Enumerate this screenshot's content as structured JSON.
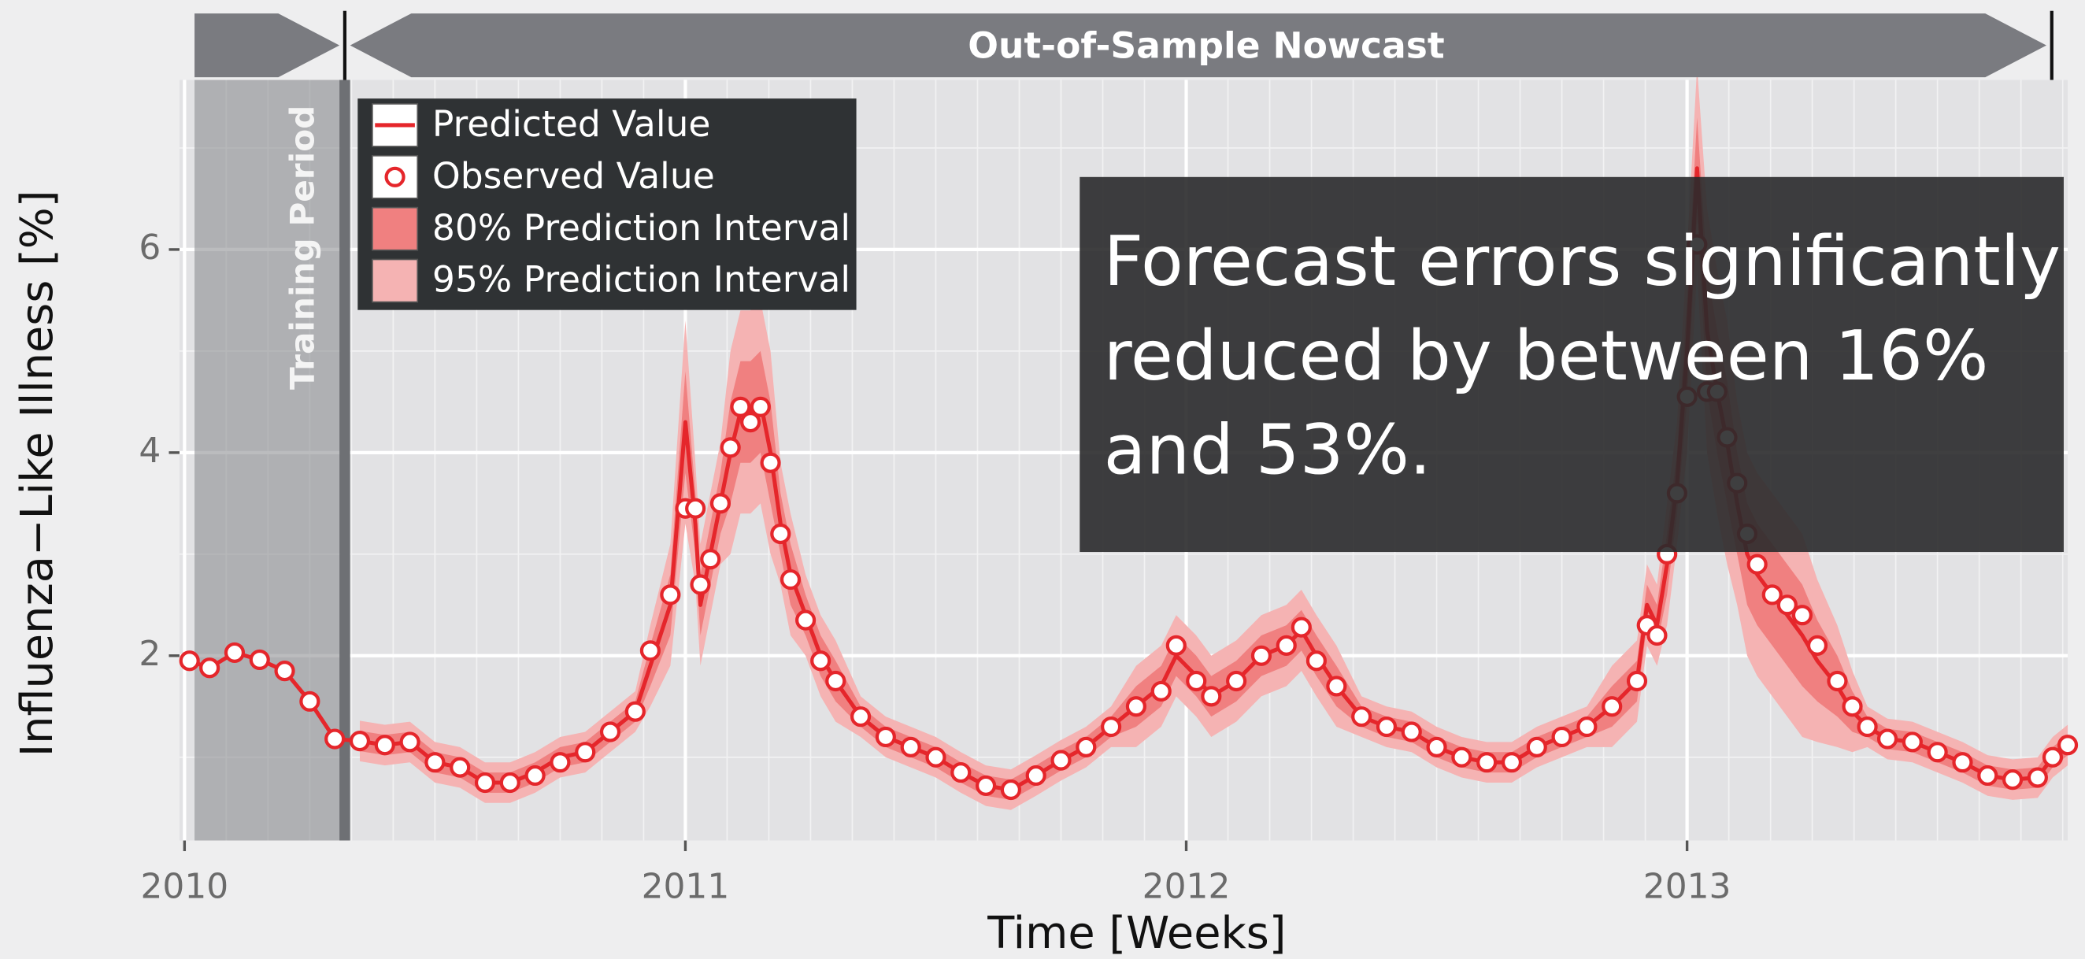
{
  "chart_data": {
    "type": "line",
    "banner": "Out-of-Sample Nowcast",
    "training_period": {
      "label": "Training Period",
      "xlim": [
        2010.02,
        2010.32
      ]
    },
    "xlabel": "Time [Weeks]",
    "ylabel": "Influenza−Like Illness [%]",
    "annotation_lines": [
      "Forecast errors significantly",
      "reduced by between 16%",
      "and 53%."
    ],
    "xlim": [
      2009.99,
      2013.76
    ],
    "xticks": [
      2010,
      2011,
      2012,
      2013
    ],
    "ylim": [
      0.18,
      7.67
    ],
    "yticks": [
      2,
      4,
      6
    ],
    "grid": true,
    "legend": "upper left",
    "x": [
      2010.01,
      2010.05,
      2010.1,
      2010.15,
      2010.2,
      2010.25,
      2010.3,
      2010.35,
      2010.4,
      2010.45,
      2010.5,
      2010.55,
      2010.6,
      2010.65,
      2010.7,
      2010.75,
      2010.8,
      2010.85,
      2010.9,
      2010.93,
      2010.97,
      2011.0,
      2011.02,
      2011.03,
      2011.05,
      2011.07,
      2011.09,
      2011.11,
      2011.13,
      2011.15,
      2011.17,
      2011.19,
      2011.21,
      2011.24,
      2011.27,
      2011.3,
      2011.35,
      2011.4,
      2011.45,
      2011.5,
      2011.55,
      2011.6,
      2011.65,
      2011.7,
      2011.75,
      2011.8,
      2011.85,
      2011.9,
      2011.95,
      2011.98,
      2012.02,
      2012.05,
      2012.1,
      2012.15,
      2012.2,
      2012.23,
      2012.26,
      2012.3,
      2012.35,
      2012.4,
      2012.45,
      2012.5,
      2012.55,
      2012.6,
      2012.65,
      2012.7,
      2012.75,
      2012.8,
      2012.85,
      2012.9,
      2012.92,
      2012.94,
      2012.96,
      2012.98,
      2013.0,
      2013.02,
      2013.04,
      2013.06,
      2013.08,
      2013.1,
      2013.12,
      2013.14,
      2013.17,
      2013.2,
      2013.23,
      2013.26,
      2013.3,
      2013.33,
      2013.36,
      2013.4,
      2013.45,
      2013.5,
      2013.55,
      2013.6,
      2013.65,
      2013.7,
      2013.73,
      2013.76
    ],
    "bands": [
      {
        "name": "95% Prediction Interval",
        "color": "#f5b3b3",
        "lower": [
          null,
          null,
          null,
          null,
          null,
          null,
          null,
          0.96,
          0.92,
          0.95,
          0.75,
          0.7,
          0.55,
          0.55,
          0.65,
          0.8,
          0.85,
          1.05,
          1.25,
          1.5,
          1.9,
          3.3,
          2.7,
          1.9,
          2.4,
          2.9,
          3.0,
          3.4,
          3.4,
          3.5,
          3.0,
          2.7,
          2.2,
          2.0,
          1.6,
          1.35,
          1.2,
          1.0,
          0.9,
          0.8,
          0.65,
          0.52,
          0.48,
          0.62,
          0.77,
          0.9,
          1.1,
          1.1,
          1.3,
          1.6,
          1.4,
          1.2,
          1.35,
          1.6,
          1.7,
          1.85,
          1.6,
          1.3,
          1.2,
          1.1,
          1.05,
          0.9,
          0.8,
          0.75,
          0.75,
          0.9,
          1.0,
          1.1,
          1.1,
          1.35,
          2.1,
          1.9,
          2.3,
          3.1,
          4.0,
          5.8,
          4.0,
          3.4,
          2.9,
          2.5,
          2.0,
          1.8,
          1.6,
          1.4,
          1.2,
          1.15,
          1.1,
          1.05,
          1.1,
          0.98,
          0.95,
          0.85,
          0.75,
          0.62,
          0.58,
          0.6,
          0.8,
          0.92
        ],
        "upper": [
          null,
          null,
          null,
          null,
          null,
          null,
          null,
          1.36,
          1.32,
          1.35,
          1.15,
          1.1,
          0.95,
          0.95,
          1.05,
          1.2,
          1.25,
          1.45,
          1.65,
          2.3,
          3.1,
          5.3,
          3.9,
          3.1,
          3.6,
          4.1,
          5.0,
          5.4,
          5.4,
          5.5,
          5.0,
          3.9,
          3.4,
          2.8,
          2.4,
          2.15,
          1.6,
          1.4,
          1.3,
          1.2,
          1.05,
          0.92,
          0.88,
          1.02,
          1.17,
          1.3,
          1.5,
          1.9,
          2.1,
          2.4,
          2.2,
          2.0,
          2.15,
          2.4,
          2.5,
          2.65,
          2.4,
          2.1,
          1.6,
          1.5,
          1.45,
          1.3,
          1.2,
          1.15,
          1.15,
          1.3,
          1.4,
          1.5,
          1.9,
          2.15,
          2.9,
          2.7,
          3.5,
          4.3,
          6.0,
          7.8,
          6.4,
          5.8,
          5.3,
          4.5,
          4.0,
          3.8,
          3.6,
          3.4,
          3.2,
          2.75,
          2.3,
          1.85,
          1.5,
          1.38,
          1.35,
          1.25,
          1.15,
          1.02,
          0.98,
          1.0,
          1.2,
          1.32
        ]
      },
      {
        "name": "80% Prediction Interval",
        "color": "#f08080",
        "lower": [
          null,
          null,
          null,
          null,
          null,
          null,
          null,
          1.06,
          1.02,
          1.05,
          0.85,
          0.8,
          0.65,
          0.65,
          0.75,
          0.9,
          0.95,
          1.15,
          1.35,
          1.7,
          2.2,
          3.8,
          3.0,
          2.2,
          2.7,
          3.2,
          3.5,
          3.9,
          3.9,
          4.0,
          3.5,
          3.0,
          2.5,
          2.2,
          1.8,
          1.55,
          1.3,
          1.1,
          1.0,
          0.9,
          0.75,
          0.62,
          0.58,
          0.72,
          0.87,
          1.0,
          1.2,
          1.3,
          1.5,
          1.8,
          1.6,
          1.4,
          1.55,
          1.8,
          1.9,
          2.05,
          1.8,
          1.5,
          1.3,
          1.2,
          1.15,
          1.0,
          0.9,
          0.85,
          0.85,
          1.0,
          1.1,
          1.2,
          1.3,
          1.55,
          2.3,
          2.1,
          2.6,
          3.4,
          4.5,
          6.3,
          4.6,
          4.0,
          3.5,
          3.0,
          2.5,
          2.3,
          2.1,
          1.9,
          1.7,
          1.55,
          1.4,
          1.25,
          1.2,
          1.08,
          1.05,
          0.95,
          0.85,
          0.72,
          0.68,
          0.7,
          0.9,
          1.02
        ],
        "upper": [
          null,
          null,
          null,
          null,
          null,
          null,
          null,
          1.26,
          1.22,
          1.25,
          1.05,
          1.0,
          0.85,
          0.85,
          0.95,
          1.1,
          1.15,
          1.35,
          1.55,
          2.1,
          2.8,
          4.8,
          3.6,
          2.8,
          3.3,
          3.8,
          4.5,
          4.9,
          4.9,
          5.0,
          4.5,
          3.6,
          3.1,
          2.6,
          2.2,
          1.95,
          1.5,
          1.3,
          1.2,
          1.1,
          0.95,
          0.82,
          0.78,
          0.92,
          1.07,
          1.2,
          1.4,
          1.7,
          1.9,
          2.2,
          2.0,
          1.8,
          1.95,
          2.2,
          2.3,
          2.45,
          2.2,
          1.9,
          1.5,
          1.4,
          1.35,
          1.2,
          1.1,
          1.05,
          1.05,
          1.2,
          1.3,
          1.4,
          1.7,
          1.95,
          2.7,
          2.5,
          3.2,
          4.0,
          5.5,
          7.3,
          5.8,
          5.2,
          4.7,
          4.0,
          3.5,
          3.3,
          3.1,
          2.9,
          2.7,
          2.35,
          2.0,
          1.65,
          1.4,
          1.28,
          1.25,
          1.15,
          1.05,
          0.92,
          0.88,
          0.9,
          1.1,
          1.22
        ]
      }
    ],
    "series": [
      {
        "name": "Predicted Value",
        "color": "#e5262b",
        "values": [
          1.95,
          1.88,
          2.03,
          1.96,
          1.85,
          1.55,
          1.18,
          1.16,
          1.12,
          1.15,
          0.95,
          0.9,
          0.75,
          0.75,
          0.85,
          1.0,
          1.05,
          1.25,
          1.45,
          1.9,
          2.5,
          4.3,
          3.3,
          2.5,
          3.0,
          3.5,
          4.0,
          4.4,
          4.4,
          4.5,
          4.0,
          3.3,
          2.8,
          2.4,
          2.0,
          1.75,
          1.4,
          1.2,
          1.1,
          1.0,
          0.85,
          0.72,
          0.68,
          0.82,
          0.97,
          1.1,
          1.3,
          1.5,
          1.7,
          2.0,
          1.8,
          1.6,
          1.75,
          2.0,
          2.1,
          2.25,
          2.0,
          1.7,
          1.4,
          1.3,
          1.25,
          1.1,
          1.0,
          0.95,
          0.95,
          1.1,
          1.2,
          1.3,
          1.5,
          1.75,
          2.5,
          2.3,
          2.9,
          3.7,
          5.0,
          6.8,
          5.2,
          4.6,
          4.1,
          3.5,
          3.0,
          2.8,
          2.6,
          2.4,
          2.2,
          1.95,
          1.7,
          1.45,
          1.3,
          1.18,
          1.15,
          1.05,
          0.95,
          0.82,
          0.78,
          0.8,
          1.0,
          1.12
        ]
      },
      {
        "name": "Observed Value",
        "color": "#e5262b",
        "values": [
          1.95,
          1.88,
          2.03,
          1.96,
          1.85,
          1.55,
          1.18,
          1.16,
          1.12,
          1.15,
          0.95,
          0.9,
          0.75,
          0.75,
          0.82,
          0.95,
          1.05,
          1.25,
          1.45,
          2.05,
          2.6,
          3.45,
          3.45,
          2.7,
          2.95,
          3.5,
          4.05,
          4.45,
          4.3,
          4.45,
          3.9,
          3.2,
          2.75,
          2.35,
          1.95,
          1.75,
          1.4,
          1.2,
          1.1,
          1.0,
          0.85,
          0.72,
          0.68,
          0.82,
          0.97,
          1.1,
          1.3,
          1.5,
          1.65,
          2.1,
          1.75,
          1.6,
          1.75,
          2.0,
          2.1,
          2.28,
          1.95,
          1.7,
          1.4,
          1.3,
          1.25,
          1.1,
          1.0,
          0.95,
          0.95,
          1.1,
          1.2,
          1.3,
          1.5,
          1.75,
          2.3,
          2.2,
          3.0,
          3.6,
          4.55,
          6.05,
          4.6,
          4.6,
          4.15,
          3.7,
          3.2,
          2.9,
          2.6,
          2.5,
          2.4,
          2.1,
          1.75,
          1.5,
          1.3,
          1.18,
          1.15,
          1.05,
          0.95,
          0.82,
          0.78,
          0.8,
          1.0,
          1.12
        ]
      }
    ]
  }
}
